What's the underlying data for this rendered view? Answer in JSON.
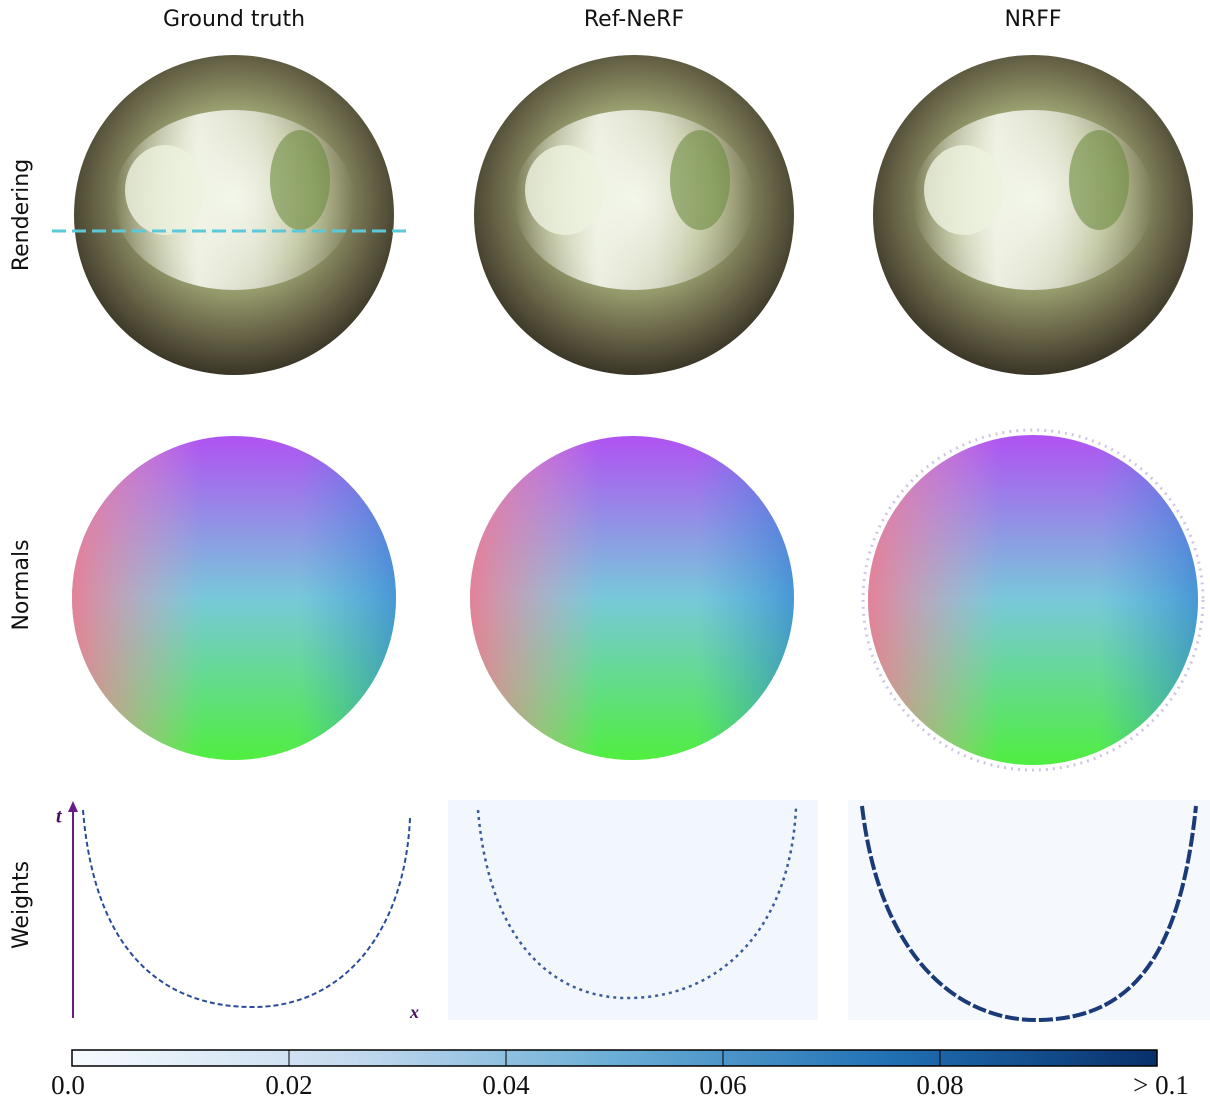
{
  "columns": [
    "Ground truth",
    "Ref-NeRF",
    "NRFF"
  ],
  "rows": [
    "Rendering",
    "Normals",
    "Weights"
  ],
  "axis_labels": {
    "t": "t",
    "x": "x"
  },
  "colorbar": {
    "lim": [
      0,
      0.1
    ],
    "ticks": [
      {
        "value": 0,
        "label": "0.0"
      },
      0.02,
      0.04,
      0.06,
      0.08,
      {
        "value": 0.1,
        "label": "> 0.1"
      }
    ]
  }
}
